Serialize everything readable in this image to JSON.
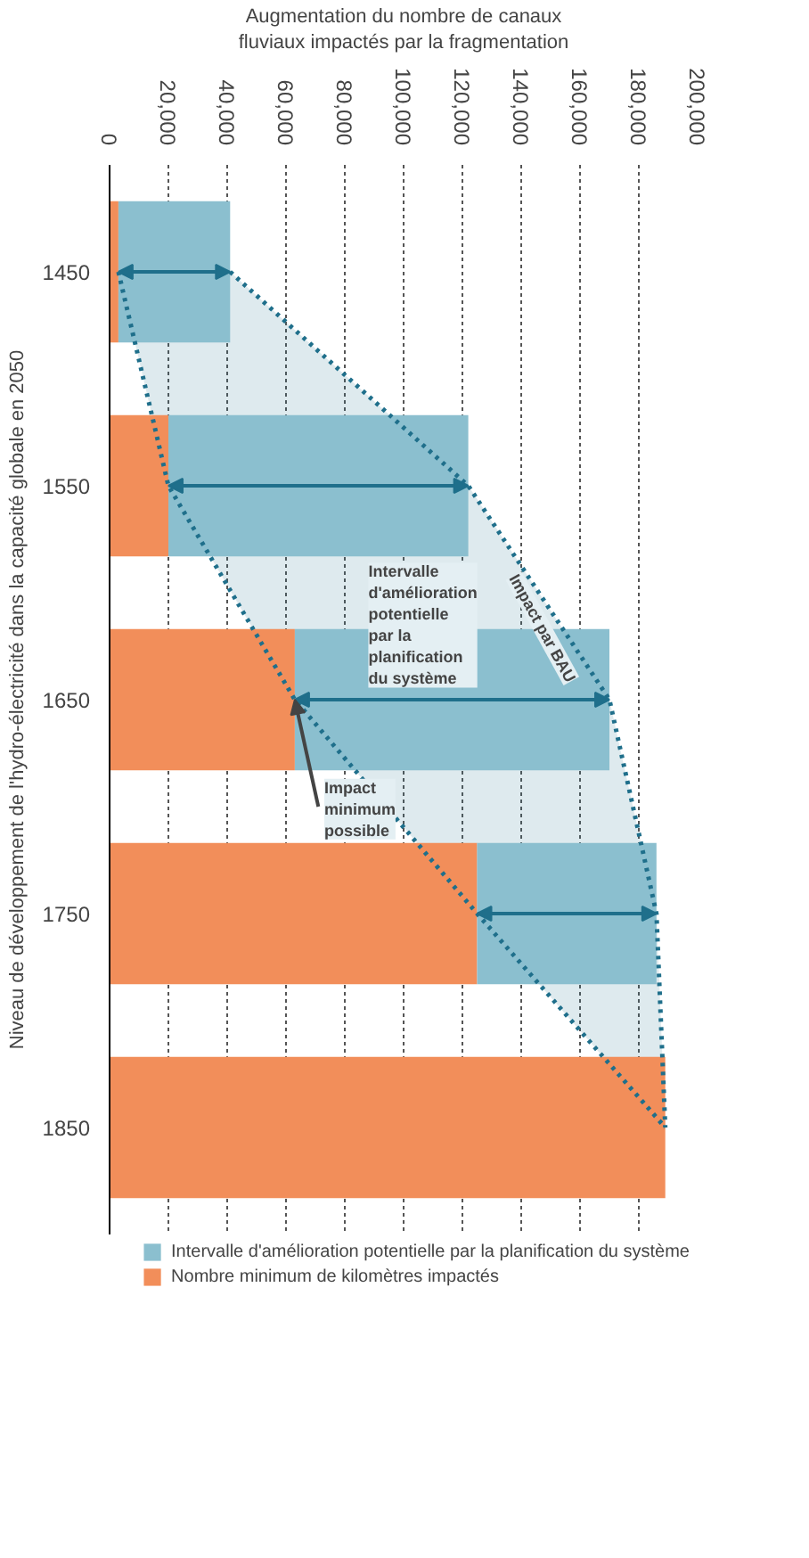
{
  "chart_data": {
    "type": "bar",
    "orientation": "horizontal",
    "stacked": true,
    "xlabel": "Augmentation du nombre de canaux\nfluviaux impactés par la fragmentation",
    "ylabel": "Niveau de développement de l'hydro-électricité dans la capacité globale en 2050",
    "categories": [
      "1450",
      "1550",
      "1650",
      "1750",
      "1850"
    ],
    "series": [
      {
        "name": "Nombre minimum de kilomètres impactés",
        "color": "#f28e5a",
        "values": [
          3000,
          20000,
          63000,
          125000,
          189000
        ]
      },
      {
        "name": "Intervalle d'amélioration potentielle par la planification du système",
        "color": "#8bbfcf",
        "values": [
          38000,
          102000,
          107000,
          61000,
          null
        ]
      },
      {
        "type": "line",
        "color": "#1f6f8b",
        "line_style": "dotted",
        "values": [
          41000,
          122000,
          170000,
          186000,
          189000
        ],
        "lower": [
          3000,
          20000,
          63000,
          125000,
          189000
        ],
        "upper": [
          41000,
          122000,
          170000,
          186000,
          189000
        ]
      },
      {
        "type": "line",
        "color": "#1f6f8b",
        "line_style": "dotted",
        "values": [
          3000,
          20000,
          63000,
          125000,
          189000
        ]
      }
    ],
    "xlim": [
      0,
      200000
    ],
    "xticks": [
      {
        "value": 0,
        "label": "0"
      },
      {
        "value": 20000,
        "label": "20,000"
      },
      {
        "value": 40000,
        "label": "40,000"
      },
      {
        "value": 60000,
        "label": "60,000"
      },
      {
        "value": 80000,
        "label": "80,000"
      },
      {
        "value": 100000,
        "label": "100,000"
      },
      {
        "value": 120000,
        "label": "120,000"
      },
      {
        "value": 140000,
        "label": "140,000"
      },
      {
        "value": 160000,
        "label": "160,000"
      },
      {
        "value": 180000,
        "label": "180,000"
      },
      {
        "value": 200000,
        "label": "200,000"
      }
    ],
    "grid": "x",
    "legend": "bottom",
    "annotations": [
      "Impact par BAU",
      "Intervalle\nd'amélioration\npotentielle\npar la\nplanification\ndu système",
      {
        "text": "Impact\nminimum\npossible",
        "x": 63000,
        "y": "1650"
      }
    ]
  }
}
